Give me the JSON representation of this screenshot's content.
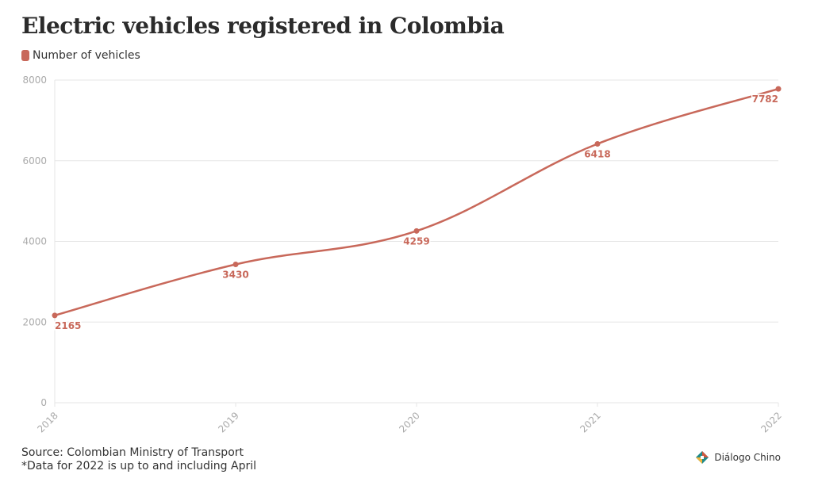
{
  "title": "Electric vehicles registered in Colombia",
  "footer": {
    "source": "Source: Colombian Ministry of Transport",
    "note": "*Data for 2022 is up to and including April"
  },
  "brand": {
    "name": "Diálogo Chino",
    "icon": "dialogo-chino-logo"
  },
  "colors": {
    "series": "#c8685a",
    "grid": "#e6e6e6",
    "tick": "#aaaaaa"
  },
  "chart_data": {
    "type": "line",
    "title": "Electric vehicles registered in Colombia",
    "x": [
      "2018",
      "2019",
      "2020",
      "2021",
      "2022"
    ],
    "series": [
      {
        "name": "Number of vehicles",
        "values": [
          2165,
          3430,
          4259,
          6418,
          7782
        ],
        "color": "#c8685a"
      }
    ],
    "y_ticks": [
      0,
      2000,
      4000,
      6000,
      8000
    ],
    "ylim": [
      0,
      8000
    ],
    "grid": true,
    "legend": "top-left",
    "xlabel": "",
    "ylabel": ""
  }
}
